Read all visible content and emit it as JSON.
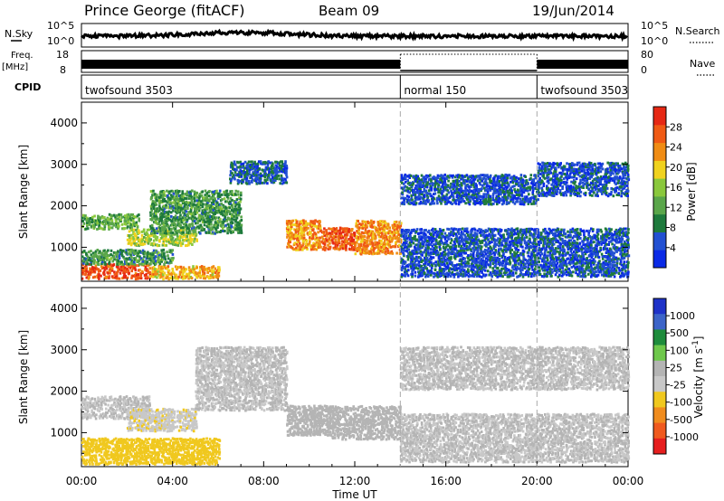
{
  "header": {
    "station": "Prince George (fitACF)",
    "beam": "Beam 09",
    "date": "19/Jun/2014"
  },
  "nsky_panel": {
    "left_label": "N.Sky",
    "right_label": "N.Search",
    "left_ticks": [
      "10^5",
      "10^0"
    ],
    "right_ticks": [
      "10^5",
      "10^0"
    ]
  },
  "freq_panel": {
    "left_label_1": "Freq.",
    "left_label_2": "[MHz]",
    "right_label": "Nave",
    "left_ticks": [
      "18",
      "8"
    ],
    "right_ticks": [
      "80",
      "0"
    ]
  },
  "cpid_panel": {
    "label": "CPID",
    "modes": [
      {
        "name": "twofsound 3503",
        "start_hour": 0,
        "end_hour": 14
      },
      {
        "name": "normal 150",
        "start_hour": 14,
        "end_hour": 20
      },
      {
        "name": "twofsound 3503",
        "start_hour": 20,
        "end_hour": 24
      }
    ]
  },
  "colors": {
    "power_scale": [
      "#0a2ae6",
      "#2250d2",
      "#1e7a3c",
      "#5aa64a",
      "#8ac83c",
      "#f0d21e",
      "#f08c14",
      "#f05a14",
      "#e62814"
    ],
    "velocity_scale": [
      "#1e32c8",
      "#3c64c8",
      "#1e8c3c",
      "#6ec84b",
      "#b4b4b4",
      "#c8c8c8",
      "#f0c81e",
      "#f08c1e",
      "#f05a1e",
      "#e61e1e"
    ]
  },
  "chart_data": [
    {
      "type": "heatmap",
      "title": "",
      "xlabel": "Time UT",
      "ylabel": "Slant Range [km]",
      "xlim": [
        0,
        24
      ],
      "ylim": [
        180,
        4500
      ],
      "x_tick_labels": [
        "00:00",
        "04:00",
        "08:00",
        "12:00",
        "16:00",
        "20:00",
        "00:00"
      ],
      "y_tick_labels": [
        "1000",
        "2000",
        "3000",
        "4000"
      ],
      "colorbar": {
        "label": "Power [dB]",
        "tick_labels": [
          "4",
          "8",
          "12",
          "16",
          "20",
          "24",
          "28"
        ],
        "range": [
          0,
          30
        ]
      },
      "scatter_regions": [
        {
          "t0": 0.0,
          "t1": 3.0,
          "r0": 200,
          "r1": 550,
          "value": 26
        },
        {
          "t0": 3.0,
          "t1": 6.0,
          "r0": 200,
          "r1": 500,
          "value": 20
        },
        {
          "t0": 0.0,
          "t1": 4.0,
          "r0": 550,
          "r1": 900,
          "value": 10
        },
        {
          "t0": 0.0,
          "t1": 2.5,
          "r0": 1400,
          "r1": 1750,
          "value": 12
        },
        {
          "t0": 2.0,
          "t1": 5.0,
          "r0": 1000,
          "r1": 1400,
          "value": 16
        },
        {
          "t0": 3.0,
          "t1": 7.0,
          "r0": 1300,
          "r1": 2300,
          "value": 10
        },
        {
          "t0": 6.5,
          "t1": 9.0,
          "r0": 2500,
          "r1": 3000,
          "value": 6
        },
        {
          "t0": 9.0,
          "t1": 10.5,
          "r0": 900,
          "r1": 1600,
          "value": 22
        },
        {
          "t0": 10.5,
          "t1": 12.0,
          "r0": 900,
          "r1": 1400,
          "value": 25
        },
        {
          "t0": 12.0,
          "t1": 14.0,
          "r0": 800,
          "r1": 1600,
          "value": 22
        },
        {
          "t0": 14.0,
          "t1": 20.0,
          "r0": 2000,
          "r1": 2700,
          "value": 5
        },
        {
          "t0": 14.0,
          "t1": 24.0,
          "r0": 250,
          "r1": 1400,
          "value": 5
        },
        {
          "t0": 20.0,
          "t1": 24.0,
          "r0": 2200,
          "r1": 3000,
          "value": 5
        }
      ]
    },
    {
      "type": "heatmap",
      "title": "",
      "xlabel": "Time UT",
      "ylabel": "Slant Range [km]",
      "xlim": [
        0,
        24
      ],
      "ylim": [
        180,
        4500
      ],
      "x_tick_labels": [
        "00:00",
        "04:00",
        "08:00",
        "12:00",
        "16:00",
        "20:00",
        "00:00"
      ],
      "y_tick_labels": [
        "1000",
        "2000",
        "3000",
        "4000"
      ],
      "colorbar": {
        "label": "Velocity [m s^-1]",
        "tick_labels": [
          "1000",
          "500",
          "100",
          "25",
          "-25",
          "-100",
          "-500",
          "-1000"
        ],
        "range": [
          -1200,
          1200
        ]
      },
      "scatter_regions": [
        {
          "t0": 0.0,
          "t1": 6.0,
          "r0": 200,
          "r1": 800,
          "value": -300
        },
        {
          "t0": 0.0,
          "t1": 3.0,
          "r0": 1300,
          "r1": 1800,
          "value": 0
        },
        {
          "t0": 2.0,
          "t1": 5.0,
          "r0": 1000,
          "r1": 1500,
          "value": -200
        },
        {
          "t0": 5.0,
          "t1": 9.0,
          "r0": 1500,
          "r1": 3000,
          "value": 0
        },
        {
          "t0": 9.0,
          "t1": 11.0,
          "r0": 900,
          "r1": 1600,
          "value": 150
        },
        {
          "t0": 11.0,
          "t1": 14.0,
          "r0": 800,
          "r1": 1600,
          "value": 120
        },
        {
          "t0": 14.0,
          "t1": 24.0,
          "r0": 250,
          "r1": 1400,
          "value": 0
        },
        {
          "t0": 14.0,
          "t1": 24.0,
          "r0": 2000,
          "r1": 3000,
          "value": 0
        }
      ]
    }
  ]
}
